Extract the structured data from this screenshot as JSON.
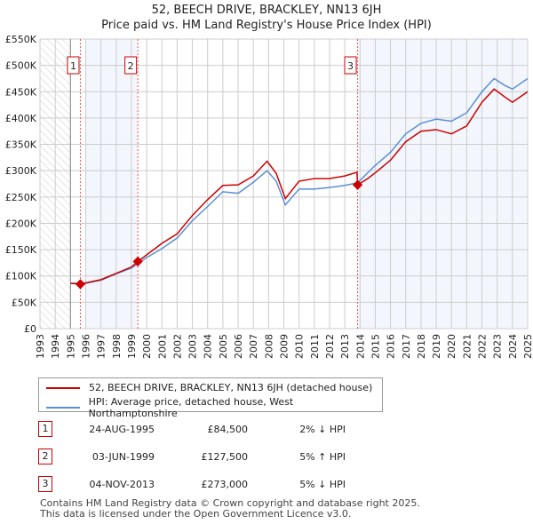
{
  "chart_data": {
    "type": "line",
    "title": "52, BEECH DRIVE, BRACKLEY, NN13 6JH",
    "subtitle": "Price paid vs. HM Land Registry's House Price Index (HPI)",
    "xlim": [
      1993,
      2025
    ],
    "ylim": [
      0,
      550000
    ],
    "yticks": [
      "£0",
      "£50K",
      "£100K",
      "£150K",
      "£200K",
      "£250K",
      "£300K",
      "£350K",
      "£400K",
      "£450K",
      "£500K",
      "£550K"
    ],
    "xticks": [
      "1993",
      "1994",
      "1995",
      "1996",
      "1997",
      "1998",
      "1999",
      "2000",
      "2001",
      "2002",
      "2003",
      "2004",
      "2005",
      "2006",
      "2007",
      "2008",
      "2009",
      "2010",
      "2011",
      "2012",
      "2013",
      "2014",
      "2015",
      "2016",
      "2017",
      "2018",
      "2019",
      "2020",
      "2021",
      "2022",
      "2023",
      "2024",
      "2025"
    ],
    "grid": true,
    "series": [
      {
        "name": "52, BEECH DRIVE, BRACKLEY, NN13 6JH (detached house)",
        "color": "#cc0000",
        "x": [
          1995,
          1995.65,
          1996,
          1997,
          1998,
          1999,
          1999.42,
          2000,
          2001,
          2002,
          2003,
          2004,
          2005,
          2006,
          2007,
          2007.9,
          2008.5,
          2009.1,
          2010,
          2011,
          2012,
          2013,
          2013.8,
          2013.84,
          2014.5,
          2015,
          2016,
          2017,
          2018,
          2019,
          2020,
          2021,
          2022,
          2022.8,
          2023.5,
          2024,
          2025
        ],
        "y": [
          86000,
          84500,
          87000,
          93000,
          105000,
          117000,
          127500,
          140000,
          162000,
          180000,
          215000,
          245000,
          272000,
          273000,
          290000,
          318000,
          295000,
          247000,
          280000,
          285000,
          285000,
          290000,
          297000,
          273000,
          285000,
          296000,
          320000,
          355000,
          375000,
          378000,
          370000,
          385000,
          430000,
          455000,
          440000,
          430000,
          450000
        ]
      },
      {
        "name": "HPI: Average price, detached house, West Northamptonshire",
        "color": "#5b8fd4",
        "x": [
          1995,
          1996,
          1997,
          1998,
          1999,
          2000,
          2001,
          2002,
          2003,
          2004,
          2005,
          2006,
          2007,
          2007.9,
          2008.5,
          2009.1,
          2010,
          2011,
          2012,
          2013,
          2013.84,
          2015,
          2016,
          2017,
          2018,
          2019,
          2020,
          2021,
          2022,
          2022.8,
          2023.5,
          2024,
          2025
        ],
        "y": [
          86000,
          86000,
          92000,
          104000,
          115000,
          135000,
          152000,
          172000,
          205000,
          232000,
          260000,
          257000,
          278000,
          300000,
          280000,
          235000,
          265000,
          265000,
          268000,
          272000,
          277000,
          310000,
          335000,
          370000,
          390000,
          398000,
          394000,
          410000,
          450000,
          475000,
          462000,
          455000,
          475000
        ]
      }
    ],
    "sales": [
      {
        "label": "1",
        "x": 1995.65,
        "y": 84500,
        "date": "24-AUG-1995",
        "price": "£84,500",
        "hpi": "2% ↓ HPI"
      },
      {
        "label": "2",
        "x": 1999.42,
        "y": 127500,
        "date": "03-JUN-1999",
        "price": "£127,500",
        "hpi": "5% ↑ HPI"
      },
      {
        "label": "3",
        "x": 2013.84,
        "y": 273000,
        "date": "04-NOV-2013",
        "price": "£273,000",
        "hpi": "5% ↓ HPI"
      }
    ]
  },
  "footer": {
    "line1": "Contains HM Land Registry data © Crown copyright and database right 2025.",
    "line2": "This data is licensed under the Open Government Licence v3.0."
  }
}
